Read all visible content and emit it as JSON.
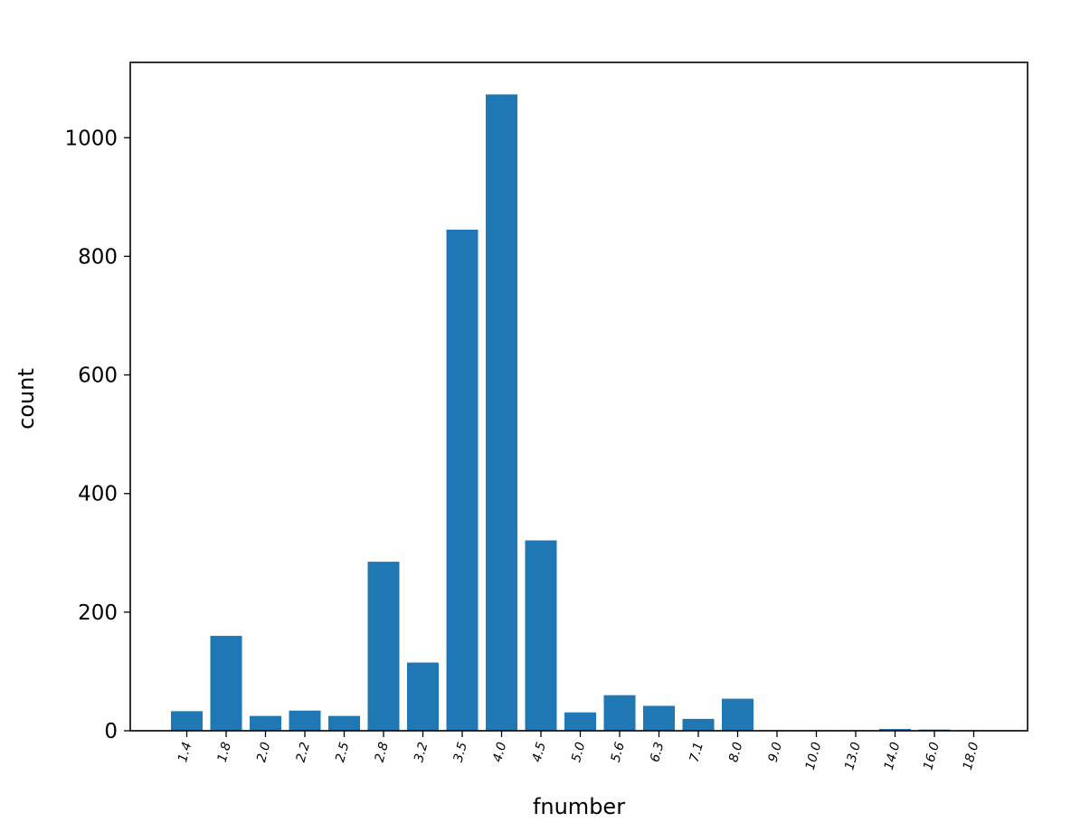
{
  "chart_data": {
    "type": "bar",
    "title": "",
    "xlabel": "fnumber",
    "ylabel": "count",
    "categories": [
      "1.4",
      "1.8",
      "2.0",
      "2.2",
      "2.5",
      "2.8",
      "3.2",
      "3.5",
      "4.0",
      "4.5",
      "5.0",
      "5.6",
      "6.3",
      "7.1",
      "8.0",
      "9.0",
      "10.0",
      "13.0",
      "14.0",
      "16.0",
      "18.0"
    ],
    "values": [
      33,
      160,
      25,
      34,
      25,
      285,
      115,
      845,
      1073,
      321,
      31,
      60,
      42,
      20,
      54,
      1,
      1,
      1,
      3,
      2,
      1
    ],
    "ylim": [
      0,
      1127
    ],
    "yticks": [
      0,
      200,
      400,
      600,
      800,
      1000
    ],
    "grid": false,
    "bar_color": "#1f77b4"
  }
}
